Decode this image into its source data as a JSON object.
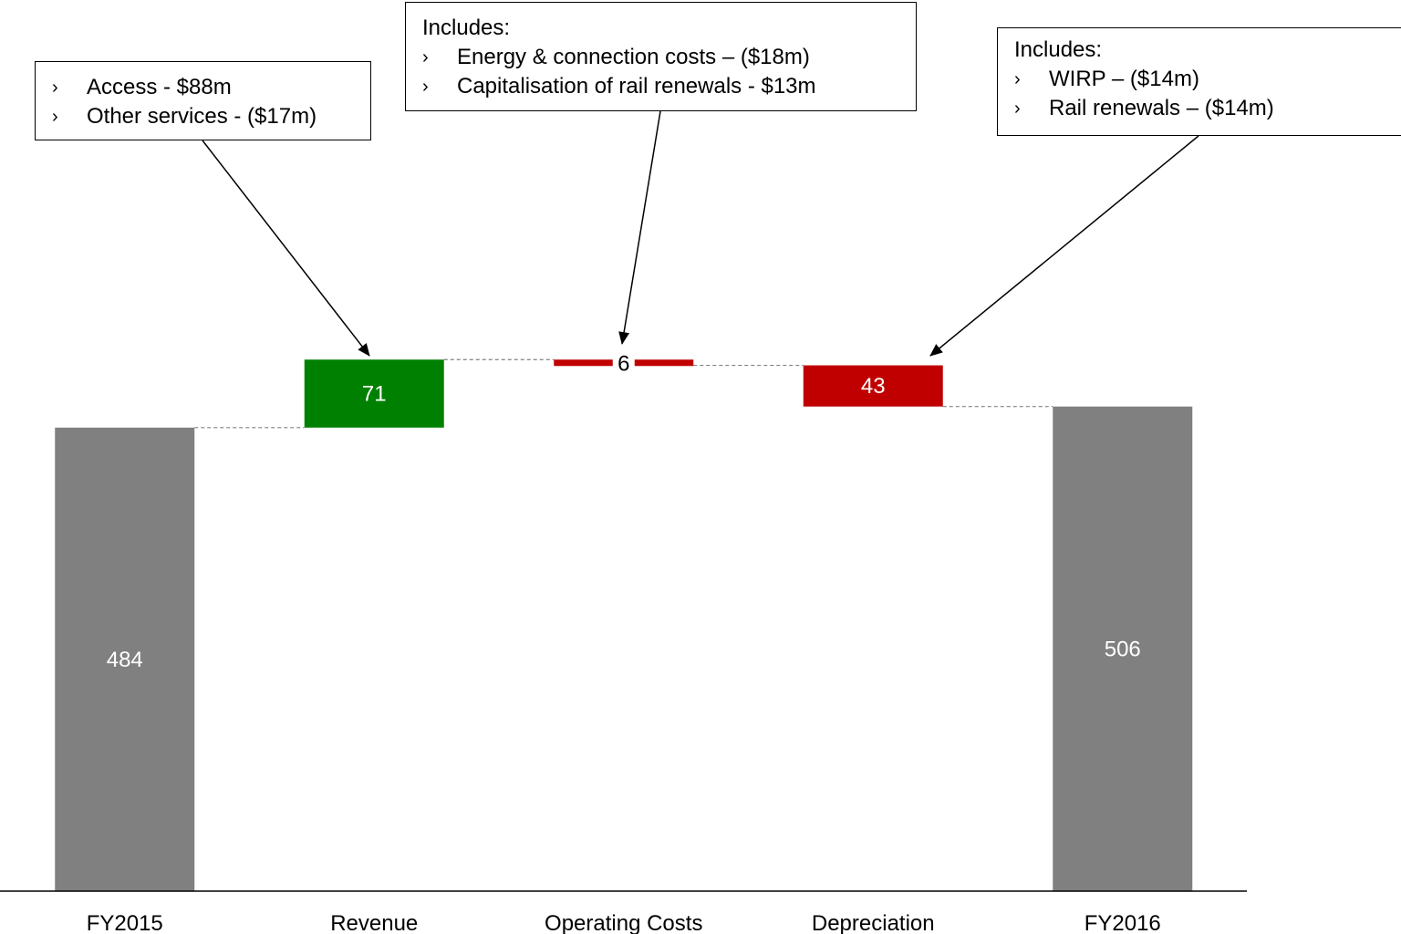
{
  "colors": {
    "total": "#808080",
    "increase": "#008000",
    "decrease": "#c00000",
    "axis": "#000000",
    "connector": "#808080",
    "label_light": "#ffffff",
    "label_dark": "#000000"
  },
  "chart_data": {
    "type": "bar",
    "subtype": "waterfall",
    "title": "",
    "xlabel": "",
    "ylabel": "",
    "ylim": [
      0,
      600
    ],
    "grid": false,
    "legend": "none",
    "categories": [
      "FY2015",
      "Revenue",
      "Operating Costs",
      "Depreciation",
      "FY2016"
    ],
    "bars": [
      {
        "category": "FY2015",
        "kind": "total",
        "value": 484,
        "label": "484"
      },
      {
        "category": "Revenue",
        "kind": "increase",
        "value": 71,
        "label": "71"
      },
      {
        "category": "Operating Costs",
        "kind": "decrease",
        "value": 6,
        "label": "6"
      },
      {
        "category": "Depreciation",
        "kind": "decrease",
        "value": 43,
        "label": "43"
      },
      {
        "category": "FY2016",
        "kind": "total",
        "value": 506,
        "label": "506"
      }
    ]
  },
  "callouts": {
    "revenue": {
      "heading": "",
      "items": [
        "Access - $88m",
        "Other services - ($17m)"
      ]
    },
    "opcost": {
      "heading": "Includes:",
      "items": [
        "Energy & connection costs – ($18m)",
        "Capitalisation of rail renewals - $13m"
      ]
    },
    "dep": {
      "heading": "Includes:",
      "items": [
        "WIRP – ($14m)",
        "Rail renewals – ($14m)"
      ]
    }
  },
  "bullet_glyph": "›"
}
